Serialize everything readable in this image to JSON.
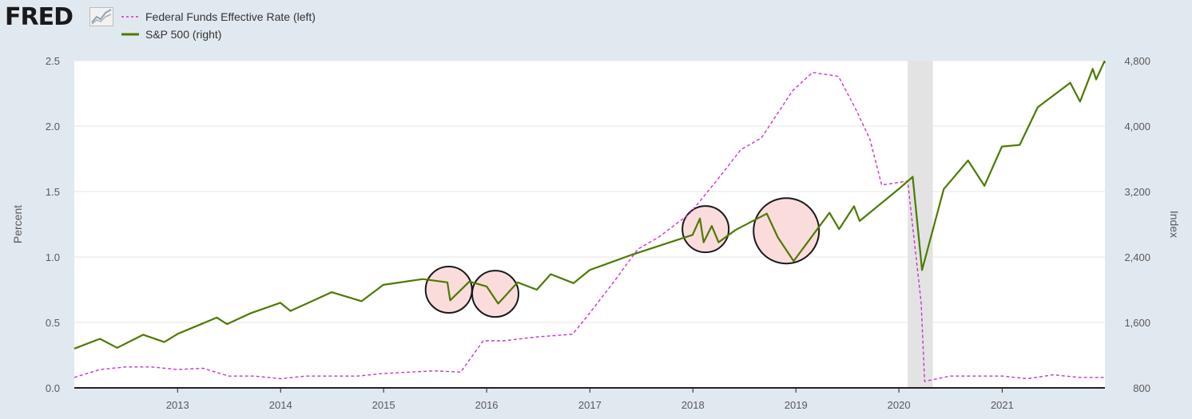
{
  "brand": {
    "logo_text": "FRED"
  },
  "legend": {
    "items": [
      {
        "label": "Federal Funds Effective Rate (left)",
        "color": "#cc33cc",
        "style": "dashed"
      },
      {
        "label": "S&P 500 (right)",
        "color": "#4d7a00",
        "style": "solid"
      }
    ]
  },
  "chart_data": {
    "type": "line",
    "x_ticks": [
      "2013",
      "2014",
      "2015",
      "2016",
      "2017",
      "2018",
      "2019",
      "2020",
      "2021"
    ],
    "x_range": [
      "2012-01-01",
      "2021-12-31"
    ],
    "left_axis": {
      "label": "Percent",
      "range": [
        0,
        2.5
      ],
      "ticks": [
        "0.0",
        "0.5",
        "1.0",
        "1.5",
        "2.0",
        "2.5"
      ]
    },
    "right_axis": {
      "label": "Index",
      "range": [
        800,
        4800
      ],
      "ticks": [
        "800",
        "1,600",
        "2,400",
        "3,200",
        "4,000",
        "4,800"
      ]
    },
    "grid": true,
    "recession_shading": [
      [
        "2020-02-01",
        "2020-04-30"
      ]
    ],
    "series": [
      {
        "name": "Federal Funds Effective Rate (left)",
        "axis": "left",
        "color": "#cc33cc",
        "points": [
          [
            "2012-01-01",
            0.08
          ],
          [
            "2012-04-01",
            0.14
          ],
          [
            "2012-07-01",
            0.16
          ],
          [
            "2012-10-01",
            0.16
          ],
          [
            "2013-01-01",
            0.14
          ],
          [
            "2013-04-01",
            0.15
          ],
          [
            "2013-07-01",
            0.09
          ],
          [
            "2013-10-01",
            0.09
          ],
          [
            "2014-01-01",
            0.07
          ],
          [
            "2014-04-01",
            0.09
          ],
          [
            "2014-07-01",
            0.09
          ],
          [
            "2014-10-01",
            0.09
          ],
          [
            "2015-01-01",
            0.11
          ],
          [
            "2015-04-01",
            0.12
          ],
          [
            "2015-07-01",
            0.13
          ],
          [
            "2015-10-01",
            0.12
          ],
          [
            "2015-12-20",
            0.36
          ],
          [
            "2016-03-01",
            0.36
          ],
          [
            "2016-07-01",
            0.39
          ],
          [
            "2016-11-01",
            0.41
          ],
          [
            "2016-12-20",
            0.54
          ],
          [
            "2017-03-20",
            0.79
          ],
          [
            "2017-06-20",
            1.06
          ],
          [
            "2017-09-01",
            1.15
          ],
          [
            "2017-12-20",
            1.33
          ],
          [
            "2018-03-25",
            1.58
          ],
          [
            "2018-06-20",
            1.82
          ],
          [
            "2018-09-01",
            1.91
          ],
          [
            "2018-12-20",
            2.27
          ],
          [
            "2019-03-01",
            2.41
          ],
          [
            "2019-06-01",
            2.38
          ],
          [
            "2019-08-01",
            2.13
          ],
          [
            "2019-09-20",
            1.9
          ],
          [
            "2019-11-01",
            1.55
          ],
          [
            "2020-02-01",
            1.58
          ],
          [
            "2020-03-20",
            0.65
          ],
          [
            "2020-04-01",
            0.05
          ],
          [
            "2020-07-01",
            0.09
          ],
          [
            "2020-10-01",
            0.09
          ],
          [
            "2021-01-01",
            0.09
          ],
          [
            "2021-04-01",
            0.07
          ],
          [
            "2021-07-01",
            0.1
          ],
          [
            "2021-10-01",
            0.08
          ],
          [
            "2021-12-31",
            0.08
          ]
        ]
      },
      {
        "name": "S&P 500 (right)",
        "axis": "right",
        "color": "#4d7a00",
        "points": [
          [
            "2012-01-01",
            1280
          ],
          [
            "2012-04-01",
            1400
          ],
          [
            "2012-06-01",
            1290
          ],
          [
            "2012-09-01",
            1450
          ],
          [
            "2012-11-15",
            1360
          ],
          [
            "2013-01-01",
            1460
          ],
          [
            "2013-05-20",
            1660
          ],
          [
            "2013-06-25",
            1580
          ],
          [
            "2013-09-15",
            1710
          ],
          [
            "2013-12-31",
            1840
          ],
          [
            "2014-02-05",
            1740
          ],
          [
            "2014-07-01",
            1970
          ],
          [
            "2014-10-15",
            1860
          ],
          [
            "2014-12-31",
            2060
          ],
          [
            "2015-05-20",
            2130
          ],
          [
            "2015-08-15",
            2090
          ],
          [
            "2015-08-25",
            1870
          ],
          [
            "2015-11-01",
            2100
          ],
          [
            "2016-01-01",
            2040
          ],
          [
            "2016-02-11",
            1830
          ],
          [
            "2016-04-20",
            2090
          ],
          [
            "2016-06-27",
            2000
          ],
          [
            "2016-08-15",
            2190
          ],
          [
            "2016-11-04",
            2080
          ],
          [
            "2016-12-31",
            2240
          ],
          [
            "2017-06-01",
            2430
          ],
          [
            "2017-12-31",
            2670
          ],
          [
            "2018-01-26",
            2870
          ],
          [
            "2018-02-08",
            2580
          ],
          [
            "2018-03-09",
            2780
          ],
          [
            "2018-04-02",
            2580
          ],
          [
            "2018-06-01",
            2730
          ],
          [
            "2018-09-20",
            2930
          ],
          [
            "2018-10-29",
            2640
          ],
          [
            "2018-12-24",
            2350
          ],
          [
            "2019-04-30",
            2940
          ],
          [
            "2019-06-03",
            2740
          ],
          [
            "2019-07-26",
            3020
          ],
          [
            "2019-08-15",
            2840
          ],
          [
            "2019-12-31",
            3230
          ],
          [
            "2020-02-19",
            3380
          ],
          [
            "2020-03-23",
            2240
          ],
          [
            "2020-06-08",
            3230
          ],
          [
            "2020-09-02",
            3580
          ],
          [
            "2020-10-30",
            3270
          ],
          [
            "2020-12-31",
            3750
          ],
          [
            "2021-03-04",
            3770
          ],
          [
            "2021-05-07",
            4230
          ],
          [
            "2021-08-30",
            4530
          ],
          [
            "2021-10-04",
            4300
          ],
          [
            "2021-11-18",
            4700
          ],
          [
            "2021-11-30",
            4570
          ],
          [
            "2021-12-29",
            4790
          ],
          [
            "2021-12-31",
            4770
          ]
        ]
      }
    ],
    "highlights": [
      {
        "x": "2015-08-20",
        "y": 2000,
        "axis": "right",
        "size": "small"
      },
      {
        "x": "2016-02-01",
        "y": 1950,
        "axis": "right",
        "size": "small"
      },
      {
        "x": "2018-02-15",
        "y": 2740,
        "axis": "right",
        "size": "small"
      },
      {
        "x": "2018-11-28",
        "y": 2720,
        "axis": "right",
        "size": "large"
      }
    ]
  }
}
